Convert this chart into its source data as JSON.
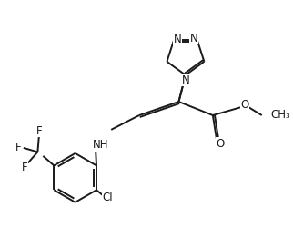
{
  "bg_color": "#ffffff",
  "line_color": "#1a1a1a",
  "line_width": 1.4,
  "font_size": 8.5,
  "figsize": [
    3.22,
    2.6
  ],
  "dpi": 100,
  "xlim": [
    0,
    10
  ],
  "ylim": [
    0,
    8.5
  ]
}
